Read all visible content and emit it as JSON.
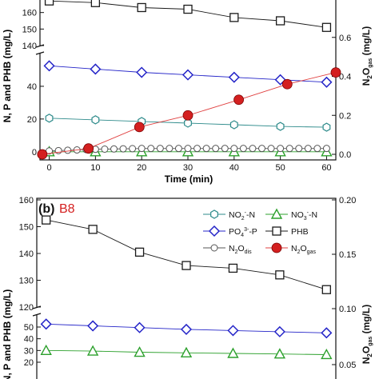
{
  "chart_data": [
    {
      "type": "line",
      "panel": "a (cropped)",
      "x": [
        0,
        10,
        20,
        30,
        40,
        50,
        60
      ],
      "xlabel": "Time (min)",
      "ylabel": "N, P and PHB (mg/L)",
      "y2label": "N2O gas (mg/L)",
      "y_segments": {
        "upper": {
          "ylim": [
            140,
            170
          ],
          "ticks": [
            "140",
            "150",
            "160"
          ]
        },
        "lower": {
          "ylim": [
            -5,
            60
          ],
          "ticks": [
            "0",
            "20",
            "40"
          ]
        }
      },
      "y2lim": [
        0,
        0.8
      ],
      "y2ticks": [
        "0.0",
        "0.2",
        "0.4",
        "0.6"
      ],
      "xticks": [
        "0",
        "10",
        "20",
        "30",
        "40",
        "50",
        "60"
      ],
      "series": [
        {
          "name": "PHB",
          "marker": "square-open",
          "color": "#1a1a1a",
          "axis": "left",
          "values": [
            167,
            166,
            163,
            162,
            157,
            155,
            151
          ]
        },
        {
          "name": "PO43--P",
          "marker": "diamond-open",
          "color": "#2424c8",
          "axis": "left",
          "values": [
            52.5,
            50.5,
            48.5,
            47,
            45.5,
            44,
            42.5
          ]
        },
        {
          "name": "NO2--N",
          "marker": "hexagon-open",
          "color": "#2e8b8b",
          "axis": "left",
          "values": [
            20.5,
            19.5,
            18.5,
            17.5,
            16.5,
            15.5,
            15
          ]
        },
        {
          "name": "NO3--N",
          "marker": "triangle-open",
          "color": "#2ca02c",
          "axis": "left",
          "values": [
            0,
            0,
            0,
            0,
            0,
            0,
            0
          ]
        },
        {
          "name": "N2O dis",
          "marker": "circle-open-dense",
          "color": "#555555",
          "axis": "left",
          "x": [
            0,
            2,
            4,
            6,
            8,
            10,
            12,
            14,
            16,
            18,
            20,
            22,
            24,
            26,
            28,
            30,
            32,
            34,
            36,
            38,
            40,
            42,
            44,
            46,
            48,
            50,
            52,
            54,
            56,
            58,
            60
          ],
          "values": [
            0.5,
            0.7,
            0.9,
            1.1,
            1.3,
            1.5,
            1.6,
            1.7,
            1.8,
            1.9,
            2,
            2,
            2,
            2,
            2,
            2,
            2,
            2,
            2,
            2,
            2,
            2,
            2,
            2,
            2,
            2,
            2,
            2,
            2,
            2,
            2
          ]
        },
        {
          "name": "N2O gas",
          "marker": "circle-filled",
          "color": "#d42020",
          "axis": "right",
          "x": [
            -1.5,
            8.5,
            19.5,
            30,
            41,
            51.5,
            62
          ],
          "values": [
            0.0,
            0.03,
            0.14,
            0.2,
            0.28,
            0.36,
            0.42
          ]
        }
      ]
    },
    {
      "type": "line",
      "panel": "(b) B8",
      "title": "B8",
      "x": [
        0,
        10,
        20,
        30,
        40,
        50,
        60
      ],
      "ylabel": "N, P and PHB (mg/L)",
      "y2label": "N2O gas (mg/L)",
      "y_segments": {
        "upper": {
          "ylim": [
            120,
            160
          ],
          "ticks": [
            "120",
            "130",
            "140",
            "150",
            "160"
          ]
        },
        "lower": {
          "ylim": [
            20,
            55
          ],
          "ticks": [
            "20",
            "30",
            "40",
            "50"
          ]
        }
      },
      "y2ticks": [
        "0.05",
        "0.10",
        "0.15",
        "0.20"
      ],
      "series": [
        {
          "name": "PHB",
          "marker": "square-open",
          "color": "#1a1a1a",
          "values": [
            152.5,
            149,
            140.5,
            135.5,
            134.5,
            132,
            126.5
          ]
        },
        {
          "name": "PO43--P",
          "marker": "diamond-open",
          "color": "#2424c8",
          "values": [
            52.5,
            51,
            49.5,
            48,
            47,
            46,
            45
          ]
        },
        {
          "name": "NO3--N",
          "marker": "triangle-open",
          "color": "#2ca02c",
          "values": [
            30,
            29.5,
            28.5,
            28,
            27.5,
            27,
            26.5
          ]
        }
      ],
      "legend": [
        "NO2--N",
        "NO3--N",
        "PO43--P",
        "PHB",
        "N2O dis",
        "N2O gas"
      ]
    }
  ],
  "text": {
    "panel_b_label": "(b)",
    "panel_b_title": "B8",
    "xlabel_a": "Time (min)",
    "ylabel_left": "N, P and PHB (mg/L)",
    "ylabel_right": "N",
    "ylabel_right_sub": "2",
    "ylabel_right_o": "O",
    "ylabel_right_gas": "gas",
    "ylabel_right_unit": " (mg/L)",
    "legend": {
      "no2": {
        "base": "NO",
        "sub": "2",
        "sup": "-",
        "tail": "-N"
      },
      "no3": {
        "base": "NO",
        "sub": "3",
        "sup": "-",
        "tail": "-N"
      },
      "po4": {
        "base": "PO",
        "sub": "4",
        "sup": "3-",
        "tail": "-P"
      },
      "phb": {
        "base": "PHB"
      },
      "n2odis": {
        "base": "N",
        "sub": "2",
        "mid": "O",
        "sub2": "dis"
      },
      "n2ogas": {
        "base": "N",
        "sub": "2",
        "mid": "O",
        "sub2": "gas"
      }
    }
  }
}
